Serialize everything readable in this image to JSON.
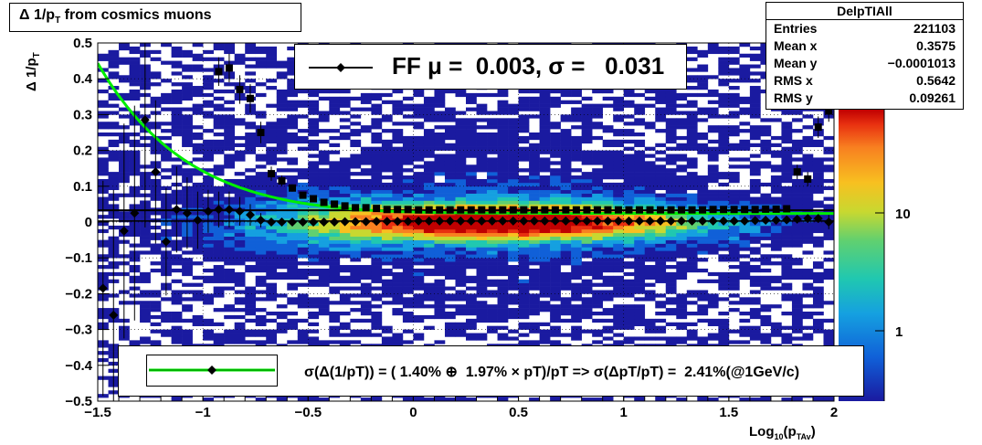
{
  "chart_data": {
    "type": "heatmap",
    "title": "Δ 1/p",
    "title_sub": "T",
    "title_rest": " from cosmics muons",
    "ylabel_main": "Δ 1/p",
    "ylabel_sub": "T",
    "xlabel_main": "Log",
    "xlabel_sub1": "10",
    "xlabel_mid": "(p",
    "xlabel_sub2": "TAv",
    "xlabel_end": ")",
    "xlim": [
      -1.5,
      2.0
    ],
    "ylim": [
      -0.5,
      0.5
    ],
    "x_ticks": [
      "−1.5",
      "−1",
      "−0.5",
      "0",
      "0.5",
      "1",
      "1.5",
      "2"
    ],
    "x_tick_values": [
      -1.5,
      -1,
      -0.5,
      0,
      0.5,
      1,
      1.5,
      2
    ],
    "y_ticks": [
      "−0.5",
      "−0.4",
      "−0.3",
      "−0.2",
      "−0.1",
      "0",
      "0.1",
      "0.2",
      "0.3",
      "0.4",
      "0.5"
    ],
    "y_tick_values": [
      -0.5,
      -0.4,
      -0.3,
      -0.2,
      -0.1,
      0,
      0.1,
      0.2,
      0.3,
      0.4,
      0.5
    ],
    "z_ticks": [
      "10",
      "1"
    ],
    "z_tick_values": [
      10,
      1
    ],
    "z_scale": "log",
    "grid": true,
    "stats": {
      "name": "DelpTIAll",
      "rows": [
        {
          "label": "Entries",
          "value": "221103"
        },
        {
          "label": "Mean x",
          "value": "0.3575"
        },
        {
          "label": "Mean y",
          "value": "−0.0001013"
        },
        {
          "label": "RMS x",
          "value": "0.5642"
        },
        {
          "label": "RMS y",
          "value": "0.09261"
        }
      ]
    },
    "legend_top": {
      "text": "FF μ =  0.003, σ =   0.031"
    },
    "legend_bottom": {
      "text": "σ(Δ(1/pT)) = ( 1.40% ⊕  1.97% × pT)/pT => σ(ΔpT/pT) =  2.41%(@1GeV/c)"
    },
    "series": [
      {
        "marker": "diamond",
        "x": [
          -1.475,
          -1.425,
          -1.375,
          -1.325,
          -1.275,
          -1.225,
          -1.175,
          -1.125,
          -1.075,
          -1.025,
          -0.975,
          -0.925,
          -0.875,
          -0.825,
          -0.775,
          -0.725,
          -0.675,
          -0.625,
          -0.575,
          -0.525,
          -0.475,
          -0.425,
          -0.375,
          -0.325,
          -0.275,
          -0.225,
          -0.175,
          -0.125,
          -0.075,
          -0.025,
          0.025,
          0.075,
          0.125,
          0.175,
          0.225,
          0.275,
          0.325,
          0.375,
          0.425,
          0.475,
          0.525,
          0.575,
          0.625,
          0.675,
          0.725,
          0.775,
          0.825,
          0.875,
          0.925,
          0.975,
          1.025,
          1.075,
          1.125,
          1.175,
          1.225,
          1.275,
          1.325,
          1.375,
          1.425,
          1.475,
          1.525,
          1.575,
          1.625,
          1.675,
          1.725,
          1.775,
          1.825,
          1.875,
          1.925,
          1.975
        ],
        "y": [
          -0.185,
          -0.26,
          -0.025,
          0.025,
          0.285,
          0.14,
          -0.055,
          0.035,
          0.025,
          0.005,
          0.03,
          0.035,
          0.035,
          0.03,
          0.02,
          0.005,
          0.0,
          0.0,
          0.0,
          0.0,
          0.0,
          0.0,
          0.0,
          0.001,
          0.001,
          0.001,
          0.002,
          0.002,
          0.002,
          0.002,
          0.003,
          0.003,
          0.003,
          0.003,
          0.003,
          0.003,
          0.003,
          0.003,
          0.003,
          0.003,
          0.003,
          0.003,
          0.003,
          0.003,
          0.003,
          0.003,
          0.003,
          0.003,
          0.003,
          0.003,
          0.003,
          0.003,
          0.003,
          0.003,
          0.003,
          0.003,
          0.003,
          0.003,
          0.003,
          0.003,
          0.003,
          0.003,
          0.004,
          0.005,
          0.005,
          0.006,
          0.008,
          0.01,
          0.01,
          0.0
        ],
        "err": [
          0.3,
          0.35,
          0.3,
          0.3,
          0.3,
          0.2,
          0.15,
          0.12,
          0.1,
          0.08,
          0.06,
          0.05,
          0.05,
          0.04,
          0.03,
          0.02,
          0.01,
          0.01,
          0.008,
          0.006,
          0.005,
          0.004,
          0.004,
          0.003,
          0.003,
          0.003,
          0.003,
          0.003,
          0.003,
          0.003,
          0.003,
          0.003,
          0.003,
          0.003,
          0.003,
          0.003,
          0.003,
          0.003,
          0.003,
          0.003,
          0.003,
          0.003,
          0.003,
          0.003,
          0.003,
          0.003,
          0.003,
          0.003,
          0.003,
          0.003,
          0.003,
          0.003,
          0.003,
          0.003,
          0.003,
          0.003,
          0.003,
          0.003,
          0.003,
          0.003,
          0.003,
          0.004,
          0.004,
          0.005,
          0.005,
          0.006,
          0.008,
          0.01,
          0.012,
          0.02
        ]
      },
      {
        "marker": "square",
        "x": [
          -0.925,
          -0.875,
          -0.825,
          -0.775,
          -0.725,
          -0.675,
          -0.625,
          -0.575,
          -0.525,
          -0.475,
          -0.425,
          -0.375,
          -0.325,
          -0.275,
          -0.225,
          -0.175,
          -0.125,
          -0.075,
          -0.025,
          0.025,
          0.075,
          0.125,
          0.175,
          0.225,
          0.275,
          0.325,
          0.375,
          0.425,
          0.475,
          0.525,
          0.575,
          0.625,
          0.675,
          0.725,
          0.775,
          0.825,
          0.875,
          0.925,
          0.975,
          1.025,
          1.075,
          1.125,
          1.175,
          1.225,
          1.275,
          1.325,
          1.375,
          1.425,
          1.475,
          1.525,
          1.575,
          1.625,
          1.675,
          1.725,
          1.775,
          1.825,
          1.875,
          1.925,
          1.975
        ],
        "y": [
          0.42,
          0.43,
          0.37,
          0.345,
          0.25,
          0.135,
          0.115,
          0.095,
          0.075,
          0.065,
          0.055,
          0.05,
          0.045,
          0.04,
          0.04,
          0.038,
          0.035,
          0.035,
          0.035,
          0.034,
          0.034,
          0.034,
          0.034,
          0.034,
          0.034,
          0.034,
          0.034,
          0.034,
          0.034,
          0.034,
          0.034,
          0.034,
          0.034,
          0.034,
          0.034,
          0.034,
          0.034,
          0.034,
          0.034,
          0.034,
          0.034,
          0.034,
          0.034,
          0.034,
          0.034,
          0.034,
          0.034,
          0.035,
          0.035,
          0.035,
          0.035,
          0.035,
          0.036,
          0.036,
          0.037,
          0.14,
          0.12,
          0.265,
          0.31
        ],
        "err": [
          0.04,
          0.04,
          0.04,
          0.04,
          0.03,
          0.02,
          0.015,
          0.01,
          0.008,
          0.006,
          0.005,
          0.004,
          0.004,
          0.003,
          0.003,
          0.003,
          0.003,
          0.003,
          0.003,
          0.003,
          0.003,
          0.003,
          0.003,
          0.003,
          0.003,
          0.003,
          0.003,
          0.003,
          0.003,
          0.003,
          0.003,
          0.003,
          0.003,
          0.003,
          0.003,
          0.003,
          0.003,
          0.003,
          0.003,
          0.003,
          0.003,
          0.003,
          0.003,
          0.003,
          0.003,
          0.003,
          0.003,
          0.003,
          0.003,
          0.003,
          0.003,
          0.003,
          0.003,
          0.003,
          0.003,
          0.02,
          0.02,
          0.03,
          0.03
        ]
      }
    ],
    "fit_curve": {
      "color": "#00ee00",
      "constant": 0.0241,
      "coefficient": 0.014,
      "note_hidden": false
    },
    "colors": {
      "frame": "#000000",
      "palette": [
        "#1a1aa0",
        "#1060d8",
        "#15a0e0",
        "#20c8b0",
        "#60d070",
        "#c8d830",
        "#f8c020",
        "#f88020",
        "#e83010",
        "#c00000"
      ]
    }
  }
}
